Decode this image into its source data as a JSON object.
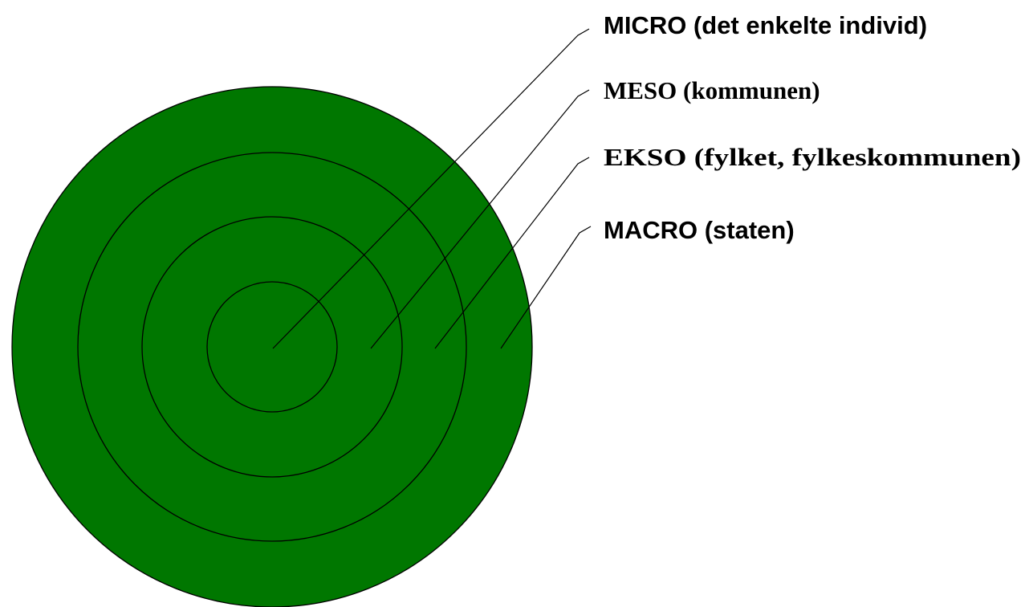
{
  "diagram": {
    "colors": {
      "fill": "#007700",
      "stroke": "#000000",
      "background": "#ffffff"
    },
    "levels": [
      {
        "id": "micro",
        "label": "MICRO (det enkelte individ)",
        "ring_color": "#007700"
      },
      {
        "id": "meso",
        "label": "MESO (kommunen)"
      },
      {
        "id": "ekso",
        "label": "EKSO (fylket, fylkeskommunen)"
      },
      {
        "id": "macro",
        "label": "MACRO (staten)"
      }
    ]
  }
}
